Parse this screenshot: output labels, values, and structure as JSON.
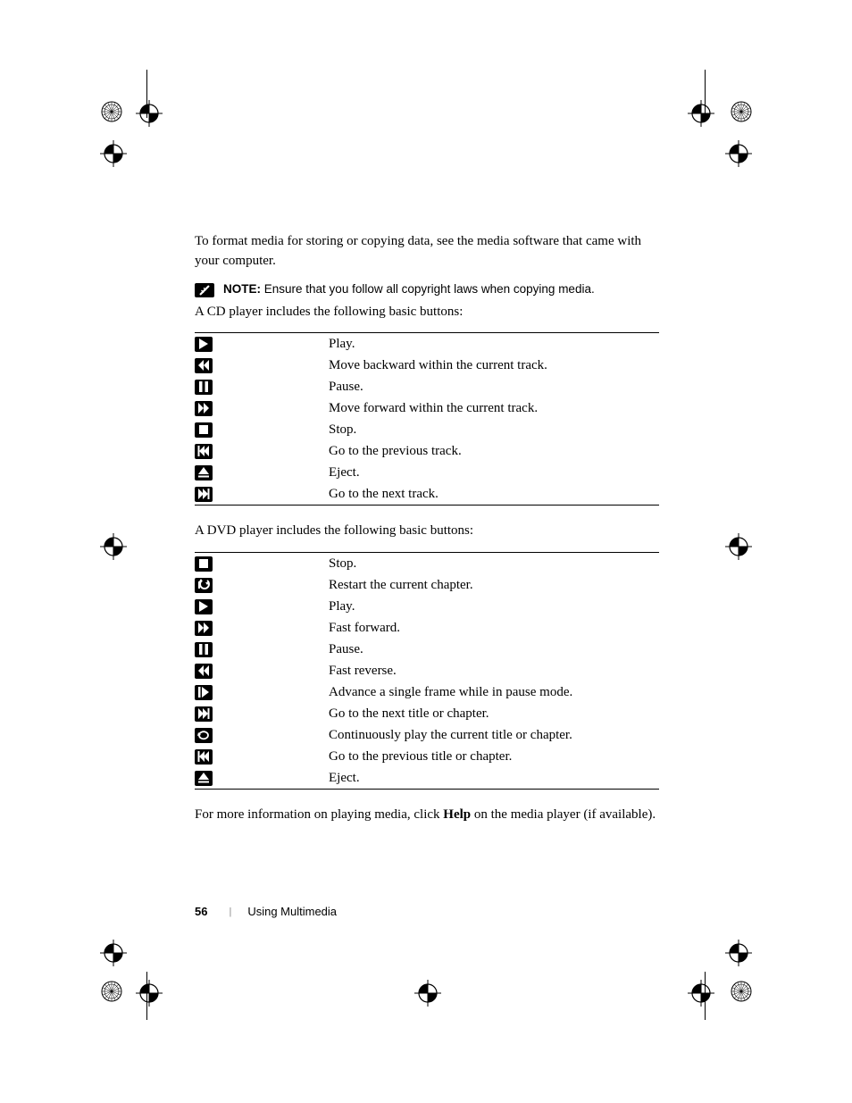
{
  "intro_text": "To format media for storing or copying data, see the media software that came with your computer.",
  "note": {
    "label": "NOTE:",
    "text": "Ensure that you follow all copyright laws when copying media."
  },
  "cd_intro": "A CD player includes the following basic buttons:",
  "cd_buttons": [
    {
      "icon": "play",
      "desc": "Play."
    },
    {
      "icon": "fast-reverse",
      "desc": "Move backward within the current track."
    },
    {
      "icon": "pause",
      "desc": "Pause."
    },
    {
      "icon": "fast-forward",
      "desc": "Move forward within the current track."
    },
    {
      "icon": "stop",
      "desc": "Stop."
    },
    {
      "icon": "prev-track",
      "desc": "Go to the previous track."
    },
    {
      "icon": "eject",
      "desc": "Eject."
    },
    {
      "icon": "next-track",
      "desc": "Go to the next track."
    }
  ],
  "dvd_intro": "A DVD player includes the following basic buttons:",
  "dvd_buttons": [
    {
      "icon": "stop",
      "desc": "Stop."
    },
    {
      "icon": "restart",
      "desc": "Restart the current chapter."
    },
    {
      "icon": "play",
      "desc": "Play."
    },
    {
      "icon": "fast-forward",
      "desc": "Fast forward."
    },
    {
      "icon": "pause",
      "desc": "Pause."
    },
    {
      "icon": "fast-reverse",
      "desc": "Fast reverse."
    },
    {
      "icon": "frame-advance",
      "desc": "Advance a single frame while in pause mode."
    },
    {
      "icon": "next-track",
      "desc": "Go to the next title or chapter."
    },
    {
      "icon": "repeat",
      "desc": "Continuously play the current title or chapter."
    },
    {
      "icon": "prev-track",
      "desc": "Go to the previous title or chapter."
    },
    {
      "icon": "eject",
      "desc": "Eject."
    }
  ],
  "outro_prefix": "For more information on playing media, click ",
  "outro_bold": "Help",
  "outro_suffix": " on the media player (if available).",
  "footer": {
    "page": "56",
    "section": "Using Multimedia"
  },
  "colors": {
    "icon_bg": "#000000",
    "icon_fg": "#ffffff",
    "text": "#000000",
    "page_bg": "#ffffff"
  }
}
